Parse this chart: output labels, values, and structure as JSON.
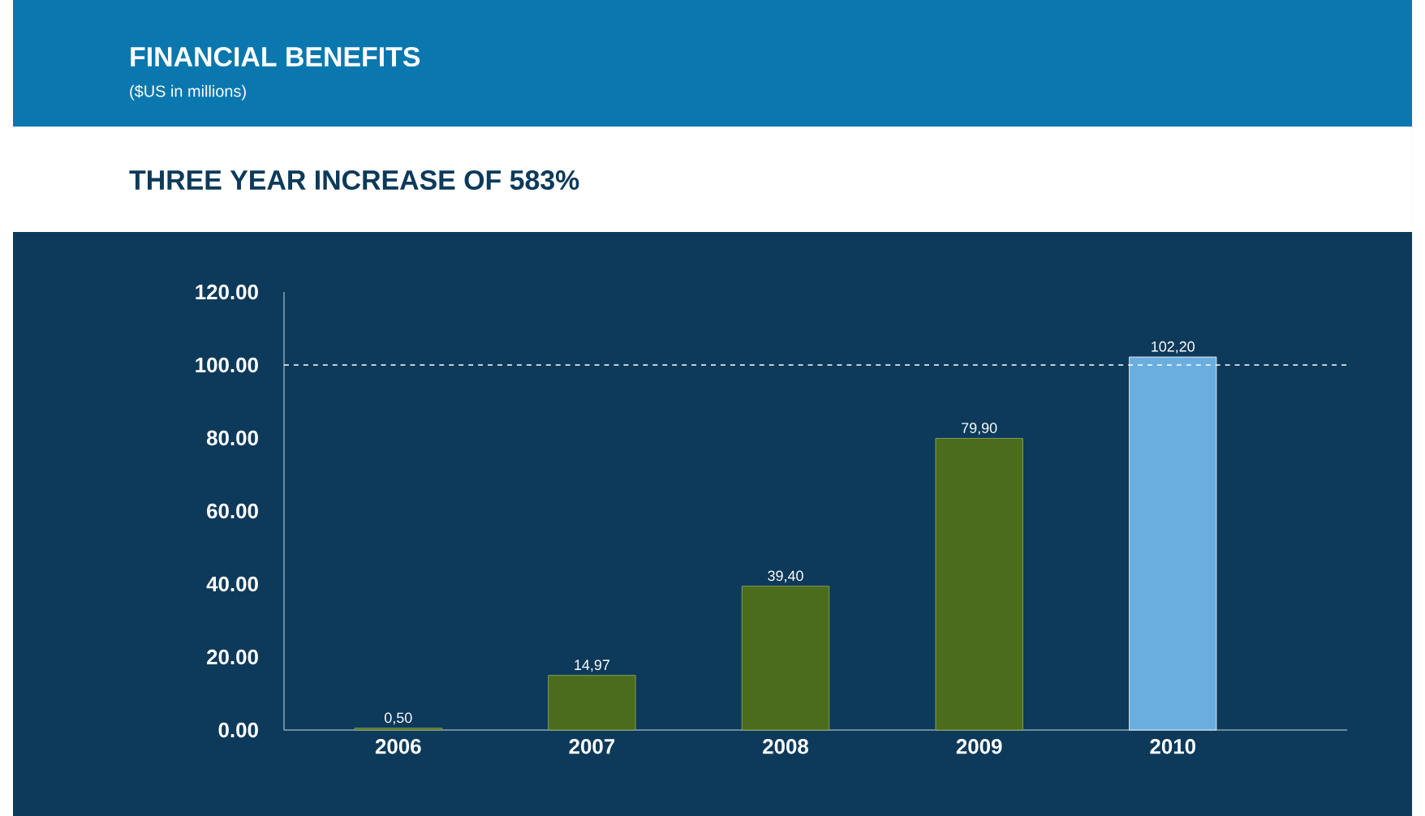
{
  "chart_data": {
    "type": "bar",
    "title": "FINANCIAL BENEFITS",
    "subtitle": "($US in millions)",
    "annotations": [
      "THREE YEAR INCREASE OF 583%"
    ],
    "categories": [
      "2006",
      "2007",
      "2008",
      "2009",
      "2010"
    ],
    "values": [
      0.5,
      14.97,
      39.4,
      79.9,
      102.2
    ],
    "value_labels": [
      "0,50",
      "14,97",
      "39,40",
      "79,90",
      "102,20"
    ],
    "colors": [
      "#4b6b1d",
      "#4b6b1d",
      "#4b6b1d",
      "#4b6b1d",
      "#6aaee0"
    ],
    "ylim": [
      0,
      120
    ],
    "yticks": [
      {
        "value": 0,
        "label": "0.00"
      },
      {
        "value": 20,
        "label": "20.00"
      },
      {
        "value": 40,
        "label": "40.00"
      },
      {
        "value": 60,
        "label": "60.00"
      },
      {
        "value": 80,
        "label": "80.00"
      },
      {
        "value": 100,
        "label": "100.00"
      },
      {
        "value": 120,
        "label": "120.00"
      }
    ],
    "ref_lines": [
      {
        "axis": "y",
        "value": 100,
        "color": "#ffffff",
        "line_style": "dashed"
      }
    ],
    "grid": false
  }
}
